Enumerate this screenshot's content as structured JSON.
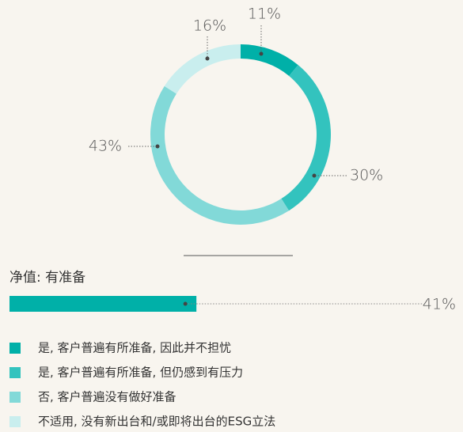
{
  "chart_data": [
    {
      "type": "pie",
      "categories": [
        "是, 客户普遍有所准备, 因此并不担忧",
        "是, 客户普遍有所准备, 但仍感到有压力",
        "否, 客户普遍没有做好准备",
        "不适用, 没有新出台和/或即将出台的ESG立法"
      ],
      "values": [
        11,
        30,
        43,
        16
      ],
      "value_labels": [
        "11%",
        "30%",
        "43%",
        "16%"
      ],
      "colors": [
        "#00b0a8",
        "#33c3be",
        "#82d9d8",
        "#c9eeee"
      ]
    },
    {
      "type": "bar",
      "title": "净值: 有准备",
      "values": [
        41
      ],
      "value_labels": [
        "41%"
      ],
      "color": "#00b0a8"
    }
  ]
}
